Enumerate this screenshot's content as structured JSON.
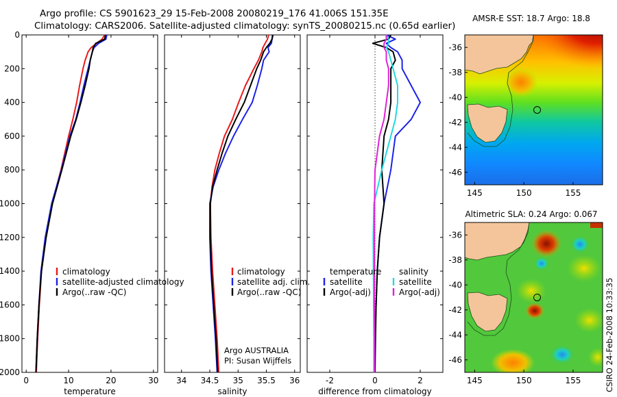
{
  "title_line1": "Argo profile: CS 5901623_29 15-Feb-2008 20080219_176 41.006S 151.35E",
  "title_line2": "Climatology: CARS2006. Satellite-adjusted climatology: synTS_20080215.nc (0.65d earlier)",
  "footer_credit": "CSIRO 24-Feb-2008 10:33:35",
  "depth_ticks": [
    "0",
    "200",
    "400",
    "600",
    "800",
    "1000",
    "1200",
    "1400",
    "1600",
    "1800",
    "2000"
  ],
  "colors": {
    "climatology": "#e8191b",
    "satellite": "#1b22e8",
    "argo": "#000000",
    "satellite_salinity_diff": "#22d8e0",
    "argo_salinity_diff": "#e020d8",
    "land": "#f4c49a"
  },
  "chart_data": [
    {
      "type": "line",
      "name": "temperature",
      "xlabel": "temperature",
      "ylabel": "",
      "xlim": [
        -1,
        31
      ],
      "ylim": [
        2000,
        0
      ],
      "y_reversed": true,
      "x_ticks": [
        "0",
        "10",
        "20",
        "30"
      ],
      "legend": {
        "placement": "lower-right",
        "entries": [
          "climatology",
          "satellite-adjusted climatology",
          "Argo(..raw -QC)"
        ]
      },
      "depth": [
        0,
        25,
        50,
        75,
        100,
        150,
        200,
        300,
        400,
        500,
        600,
        800,
        1000,
        1200,
        1400,
        1600,
        1800,
        2000
      ],
      "series": [
        {
          "name": "climatology",
          "color": "#e8191b",
          "values": [
            18.5,
            17.9,
            16.6,
            15.3,
            14.6,
            13.9,
            13.4,
            12.6,
            11.9,
            11.0,
            10.0,
            8.2,
            6.1,
            4.6,
            3.6,
            3.1,
            2.7,
            2.4
          ]
        },
        {
          "name": "satellite-adjusted climatology",
          "color": "#1b22e8",
          "values": [
            19.0,
            18.8,
            17.1,
            16.0,
            15.6,
            15.1,
            14.6,
            13.6,
            12.7,
            11.7,
            10.3,
            8.3,
            6.0,
            4.5,
            3.5,
            3.0,
            2.6,
            2.3
          ]
        },
        {
          "name": "Argo(..raw -QC)",
          "color": "#000000",
          "values": [
            18.7,
            18.5,
            16.4,
            15.8,
            15.6,
            15.1,
            14.8,
            13.9,
            12.9,
            11.8,
            10.5,
            8.4,
            6.2,
            4.7,
            3.6,
            3.0,
            2.6,
            2.3
          ]
        }
      ]
    },
    {
      "type": "line",
      "name": "salinity",
      "xlabel": "salinity",
      "ylabel": "",
      "xlim": [
        33.7,
        36.1
      ],
      "ylim": [
        2000,
        0
      ],
      "y_reversed": true,
      "x_ticks": [
        "34",
        "34.5",
        "35",
        "35.5",
        "36"
      ],
      "legend": {
        "placement": "lower-right",
        "entries": [
          "climatology",
          "satellite adj. clim.",
          "Argo(..raw -QC)"
        ]
      },
      "annotations": [
        "Argo AUSTRALIA",
        "PI: Susan Wijffels"
      ],
      "depth": [
        0,
        25,
        50,
        75,
        100,
        150,
        200,
        300,
        400,
        500,
        600,
        700,
        800,
        900,
        1000,
        1200,
        1400,
        1600,
        1800,
        2000
      ],
      "series": [
        {
          "name": "climatology",
          "color": "#e8191b",
          "values": [
            35.54,
            35.52,
            35.48,
            35.44,
            35.42,
            35.36,
            35.28,
            35.13,
            35.01,
            34.9,
            34.76,
            34.67,
            34.59,
            34.54,
            34.51,
            34.52,
            34.55,
            34.59,
            34.63,
            34.66
          ]
        },
        {
          "name": "satellite adj. clim.",
          "color": "#1b22e8",
          "values": [
            35.62,
            35.6,
            35.59,
            35.53,
            35.55,
            35.45,
            35.42,
            35.34,
            35.25,
            35.08,
            34.92,
            34.78,
            34.66,
            34.56,
            34.5,
            34.5,
            34.52,
            34.56,
            34.6,
            34.63
          ]
        },
        {
          "name": "Argo(..raw -QC)",
          "color": "#000000",
          "values": [
            35.61,
            35.6,
            35.56,
            35.5,
            35.45,
            35.4,
            35.33,
            35.22,
            35.11,
            34.96,
            34.82,
            34.72,
            34.63,
            34.55,
            34.51,
            34.51,
            34.53,
            34.57,
            34.61,
            34.64
          ]
        }
      ]
    },
    {
      "type": "line",
      "name": "difference",
      "xlabel": "difference from climatology",
      "ylabel": "",
      "xlim": [
        -3,
        3
      ],
      "ylim": [
        2000,
        0
      ],
      "y_reversed": true,
      "x_ticks": [
        "-2",
        "0",
        "2"
      ],
      "zero_line": true,
      "legend": {
        "placement": "lower-center",
        "columns": [
          {
            "title": "temperature",
            "entries": [
              "satellite",
              "Argo(-adj)"
            ]
          },
          {
            "title": "salinity",
            "entries": [
              "satellite",
              "Argo(-adj)"
            ]
          }
        ]
      },
      "depth": [
        0,
        25,
        50,
        75,
        100,
        150,
        200,
        300,
        400,
        500,
        600,
        800,
        1000,
        1200,
        1400,
        1600,
        1800,
        2000
      ],
      "series": [
        {
          "name": "temperature satellite",
          "color": "#1b22e8",
          "values": [
            0.5,
            0.9,
            0.5,
            0.7,
            1.0,
            1.2,
            1.2,
            1.6,
            2.0,
            1.6,
            0.9,
            0.7,
            0.4,
            0.2,
            0.1,
            0.05,
            0.0,
            -0.05
          ]
        },
        {
          "name": "temperature Argo(-adj)",
          "color": "#000000",
          "values": [
            0.7,
            0.6,
            -0.1,
            0.5,
            0.8,
            0.9,
            0.7,
            0.7,
            0.7,
            0.6,
            0.4,
            0.3,
            0.4,
            0.2,
            0.1,
            0.05,
            0.02,
            0.0
          ]
        },
        {
          "name": "salinity satellite",
          "color": "#22d8e0",
          "values": [
            0.5,
            0.6,
            0.6,
            0.5,
            0.6,
            0.7,
            0.8,
            1.0,
            1.0,
            0.9,
            0.7,
            0.3,
            -0.05,
            -0.08,
            -0.07,
            -0.06,
            -0.05,
            -0.05
          ]
        },
        {
          "name": "salinity Argo(-adj)",
          "color": "#e020d8",
          "values": [
            0.5,
            0.5,
            0.4,
            0.4,
            0.5,
            0.5,
            0.6,
            0.6,
            0.5,
            0.4,
            0.2,
            0.0,
            -0.02,
            -0.03,
            -0.03,
            -0.03,
            -0.02,
            -0.02
          ]
        }
      ]
    },
    {
      "type": "heatmap",
      "name": "sst-map",
      "title": "AMSR-E SST: 18.7 Argo: 18.8",
      "xlim": [
        144,
        158
      ],
      "ylim": [
        -47,
        -35
      ],
      "x_ticks": [
        "145",
        "150",
        "155"
      ],
      "y_ticks": [
        "-36",
        "-38",
        "-40",
        "-42",
        "-44",
        "-46"
      ],
      "marker": {
        "lon": 151.35,
        "lat": -41.006
      }
    },
    {
      "type": "heatmap",
      "name": "sla-map",
      "title": "Altimetric SLA: 0.24 Argo: 0.067",
      "xlim": [
        144,
        158
      ],
      "ylim": [
        -47,
        -35
      ],
      "x_ticks": [
        "145",
        "150",
        "155"
      ],
      "y_ticks": [
        "-36",
        "-38",
        "-40",
        "-42",
        "-44",
        "-46"
      ],
      "marker": {
        "lon": 151.35,
        "lat": -41.006
      }
    }
  ]
}
